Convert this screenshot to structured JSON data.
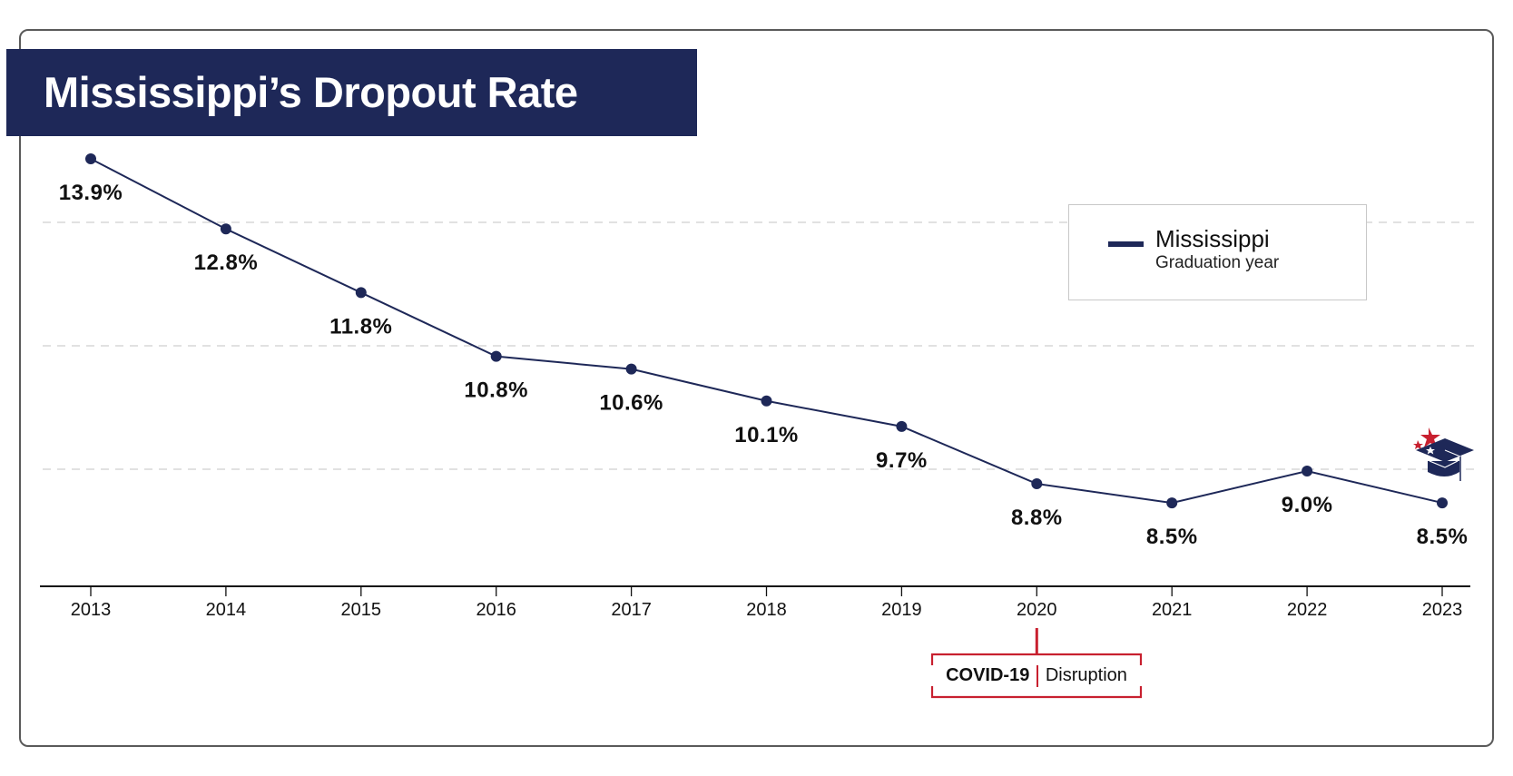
{
  "title": "Mississippi’s Dropout Rate",
  "colors": {
    "navy": "#1e2858",
    "accent_red": "#c8202f",
    "grid": "#cfcfcf",
    "axis": "#111111",
    "border": "#5a5a5a"
  },
  "legend": {
    "series_label": "Mississippi",
    "subtitle": "Graduation year"
  },
  "annotation": {
    "year": "2020",
    "strong": "COVID-19",
    "text": "Disruption"
  },
  "icon": "graduation-cap-icon",
  "chart_data": {
    "type": "line",
    "title": "Mississippi’s Dropout Rate",
    "xlabel": "Graduation year",
    "ylabel": "",
    "categories": [
      "2013",
      "2014",
      "2015",
      "2016",
      "2017",
      "2018",
      "2019",
      "2020",
      "2021",
      "2022",
      "2023"
    ],
    "series": [
      {
        "name": "Mississippi",
        "values": [
          13.9,
          12.8,
          11.8,
          10.8,
          10.6,
          10.1,
          9.7,
          8.8,
          8.5,
          9.0,
          8.5
        ],
        "labels": [
          "13.9%",
          "12.8%",
          "11.8%",
          "10.8%",
          "10.6%",
          "10.1%",
          "9.7%",
          "8.8%",
          "8.5%",
          "9.0%",
          "8.5%"
        ]
      }
    ],
    "gridlines": 3,
    "grid": true,
    "legend_position": "top-right",
    "annotations": [
      {
        "category": "2020",
        "text": "COVID-19 | Disruption"
      }
    ]
  }
}
